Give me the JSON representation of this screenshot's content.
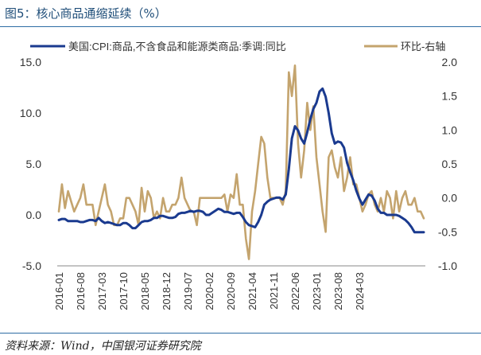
{
  "figure_title": "图5：核心商品通缩延续（%）",
  "source_note": "资料来源：Wind，中国银河证券研究院",
  "colors": {
    "series_left": "#1a3a8f",
    "series_right": "#c4a46e",
    "rule": "#2e6da4"
  },
  "chart_data": {
    "type": "line",
    "grid": false,
    "legend_position": "top",
    "x_tick_labels": [
      "2016-01",
      "2016-08",
      "2017-03",
      "2017-10",
      "2018-05",
      "2018-12",
      "2019-07",
      "2020-02",
      "2020-09",
      "2021-04",
      "2021-11",
      "2022-06",
      "2023-01",
      "2023-08",
      "2024-03"
    ],
    "y_left": {
      "ylim": [
        -5,
        15
      ],
      "ticks": [
        "15.0",
        "10.0",
        "5.0",
        "0.0",
        "-5.0"
      ],
      "tick_values": [
        15,
        10,
        5,
        0,
        -5
      ]
    },
    "y_right": {
      "ylim": [
        -1,
        2
      ],
      "ticks": [
        "2.0",
        "1.5",
        "1.0",
        "0.5",
        "0.0",
        "-0.5",
        "-1.0"
      ],
      "tick_values": [
        2,
        1.5,
        1,
        0.5,
        0,
        -0.5,
        -1
      ]
    },
    "series": [
      {
        "name": "美国:CPI:商品,不含食品和能源类商品:季调:同比",
        "axis": "left",
        "values": [
          -0.5,
          -0.4,
          -0.4,
          -0.6,
          -0.6,
          -0.6,
          -0.6,
          -0.7,
          -0.7,
          -0.6,
          -0.5,
          -0.5,
          -0.6,
          -0.3,
          -0.6,
          -0.8,
          -0.7,
          -0.8,
          -0.9,
          -1.0,
          -1.0,
          -0.8,
          -0.8,
          -1.0,
          -1.3,
          -1.3,
          -1.0,
          -0.7,
          -0.6,
          -0.6,
          -0.5,
          -0.3,
          -0.3,
          -0.1,
          -0.1,
          -0.2,
          -0.3,
          -0.3,
          -0.2,
          0.1,
          0.2,
          0.2,
          0.3,
          0.4,
          0.3,
          0.4,
          0.4,
          0.3,
          0.0,
          0.0,
          0.2,
          0.4,
          0.6,
          0.5,
          0.3,
          0.3,
          0.2,
          0.1,
          0.2,
          0.2,
          -0.2,
          -0.7,
          -1.0,
          -1.1,
          -1.2,
          -0.7,
          0.0,
          1.0,
          1.3,
          1.5,
          1.6,
          1.7,
          1.7,
          1.5,
          2.0,
          4.5,
          7.5,
          8.7,
          8.3,
          7.5,
          7.0,
          8.1,
          9.4,
          10.4,
          11.0,
          12.1,
          12.4,
          11.6,
          10.0,
          8.0,
          7.0,
          7.2,
          7.1,
          6.6,
          5.1,
          4.2,
          3.4,
          2.4,
          1.6,
          1.0,
          1.5,
          2.0,
          1.9,
          1.4,
          0.6,
          0.2,
          0.2,
          0.0,
          0.0,
          0.0,
          0.0,
          -0.1,
          -0.3,
          -0.5,
          -0.8,
          -1.2,
          -1.7,
          -1.7,
          -1.7,
          -1.7
        ]
      },
      {
        "name": "环比-右轴",
        "axis": "right",
        "values": [
          -0.2,
          0.2,
          -0.15,
          0.1,
          -0.05,
          -0.2,
          -0.1,
          0.0,
          0.2,
          -0.1,
          -0.1,
          -0.1,
          -0.4,
          -0.2,
          0.0,
          0.2,
          -0.1,
          -0.2,
          -0.4,
          -0.4,
          -0.3,
          -0.3,
          0.0,
          0.0,
          -0.1,
          -0.2,
          -0.4,
          0.15,
          -0.2,
          0.1,
          0.0,
          -0.3,
          -0.2,
          -0.3,
          0.0,
          -0.2,
          -0.2,
          -0.1,
          -0.1,
          0.0,
          0.3,
          0.0,
          -0.1,
          -0.2,
          -0.2,
          -0.4,
          0.0,
          0.0,
          0.0,
          0.0,
          0.0,
          0.0,
          0.0,
          0.0,
          0.05,
          -0.2,
          0.05,
          0.0,
          0.35,
          -0.1,
          -0.1,
          -0.6,
          -0.9,
          -0.2,
          0.1,
          0.5,
          0.9,
          0.8,
          0.3,
          0.0,
          0.0,
          0.0,
          0.0,
          -0.1,
          0.1,
          1.85,
          1.5,
          1.95,
          0.8,
          0.3,
          0.7,
          1.4,
          1.0,
          1.35,
          0.6,
          0.2,
          -0.2,
          -0.5,
          0.6,
          0.7,
          0.45,
          0.3,
          0.6,
          0.1,
          0.3,
          0.6,
          0.2,
          0.2,
          0.0,
          -0.2,
          -0.1,
          0.05,
          0.1,
          -0.1,
          -0.2,
          0.0,
          -0.2,
          0.1,
          0.0,
          -0.3,
          0.1,
          -0.2,
          0.0,
          0.1,
          -0.1,
          -0.1,
          0.0,
          -0.2,
          -0.2,
          -0.3
        ]
      }
    ]
  }
}
